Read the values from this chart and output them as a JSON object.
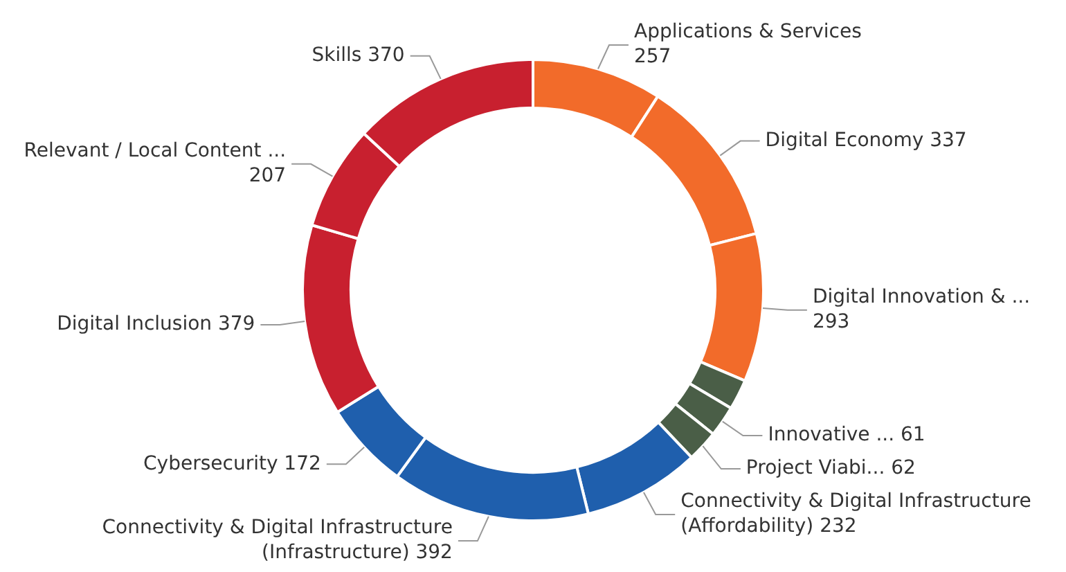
{
  "chart_data": {
    "type": "donut",
    "categories": [
      "Applications & Services",
      "Digital Economy",
      "Digital Innovation & ...",
      null,
      "Innovative ...",
      "Project Viabi...",
      "Connectivity & Digital Infrastructure (Affordability)",
      "Connectivity & Digital Infrastructure (Infrastructure)",
      "Cybersecurity",
      "Digital Inclusion",
      "Relevant / Local Content ...",
      "Skills"
    ],
    "values": [
      257,
      337,
      293,
      60,
      61,
      62,
      232,
      392,
      172,
      379,
      207,
      370
    ],
    "colors": [
      "#f26b2a",
      "#f26b2a",
      "#f26b2a",
      "#4a5e47",
      "#4a5e47",
      "#4a5e47",
      "#1f5fad",
      "#1f5fad",
      "#1f5fad",
      "#c8202f",
      "#c8202f",
      "#c8202f"
    ],
    "value_labels": [
      "257",
      "337",
      "293",
      null,
      "61",
      "62",
      "232",
      "392",
      "172",
      "379",
      "207",
      "370"
    ],
    "legend": false
  }
}
